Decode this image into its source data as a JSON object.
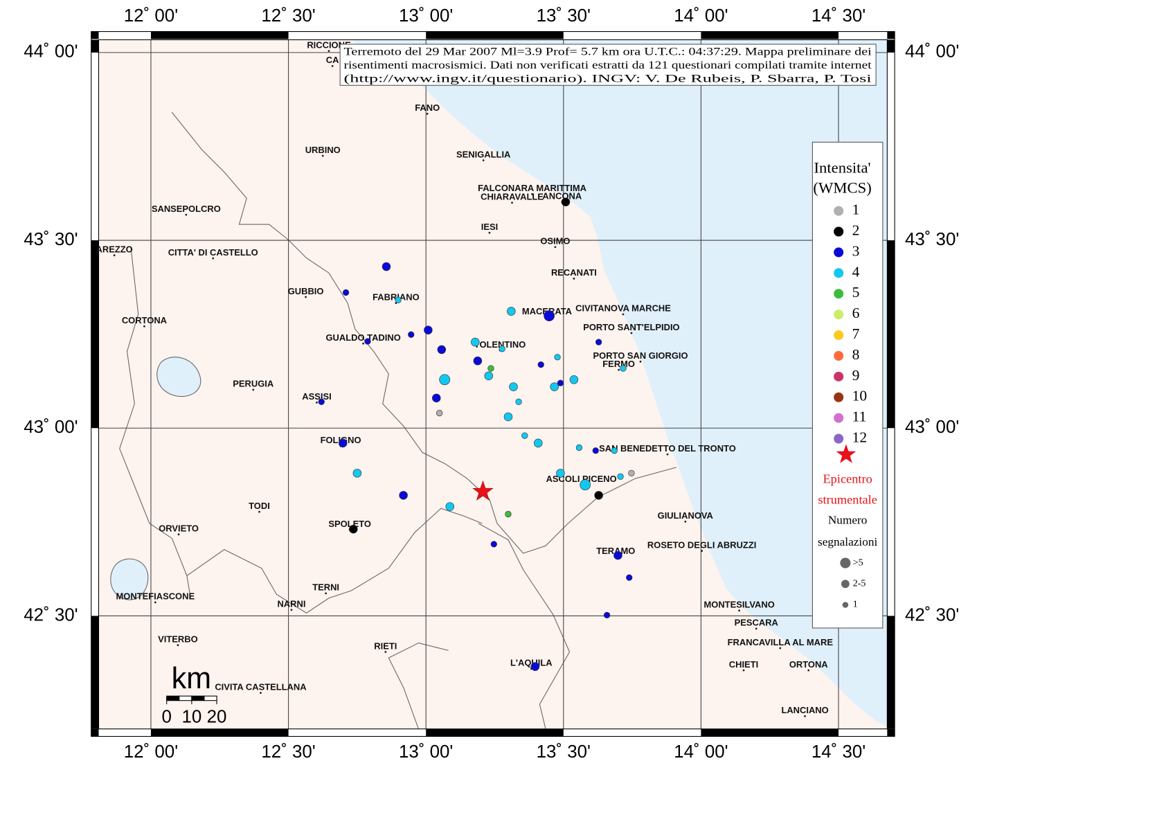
{
  "map": {
    "title_lines": [
      "Terremoto del 29 Mar 2007 Ml=3.9 Prof= 5.7 km ora U.T.C.: 04:37:29.  Mappa preliminare dei",
      "risentimenti macrosismici.    Dati non verificati estratti da 121 questionari compilati tramite internet",
      "(http://www.ingv.it/questionario).    INGV: V.  De Rubeis, P.  Sbarra, P.  Tosi"
    ],
    "lon_range": [
      11.81,
      14.677
    ],
    "lat_range": [
      42.199,
      44.034
    ],
    "lon_ticks": [
      {
        "value": 12,
        "label": "12˚ 00'"
      },
      {
        "value": 12.5,
        "label": "12˚ 30'"
      },
      {
        "value": 13,
        "label": "13˚ 00'"
      },
      {
        "value": 13.5,
        "label": "13˚ 30'"
      },
      {
        "value": 14,
        "label": "14˚ 00'"
      },
      {
        "value": 14.5,
        "label": "14˚ 30'"
      }
    ],
    "lat_ticks": [
      {
        "value": 42.5,
        "label": "42˚ 30'"
      },
      {
        "value": 43,
        "label": "43˚ 00'"
      },
      {
        "value": 43.5,
        "label": "43˚ 30'"
      },
      {
        "value": 44,
        "label": "44˚ 00'"
      }
    ],
    "grid": true,
    "land_color": "#fdf3ef",
    "sea_color": "#dff0fb",
    "cities": [
      {
        "name": "RICCIONE",
        "lon": 12.647,
        "lat": 44.018
      },
      {
        "name": "CA",
        "lon": 12.66,
        "lat": 43.978
      },
      {
        "name": "FANO",
        "lon": 13.005,
        "lat": 43.851
      },
      {
        "name": "URBINO",
        "lon": 12.625,
        "lat": 43.739
      },
      {
        "name": "SENIGALLIA",
        "lon": 13.209,
        "lat": 43.727
      },
      {
        "name": "FALCONARA MARITTIMA",
        "lon": 13.386,
        "lat": 43.637
      },
      {
        "name": "CHIARAVALLE",
        "lon": 13.313,
        "lat": 43.614
      },
      {
        "name": "ANCONA",
        "lon": 13.495,
        "lat": 43.616
      },
      {
        "name": "SANSEPOLCRO",
        "lon": 12.128,
        "lat": 43.582
      },
      {
        "name": "IESI",
        "lon": 13.231,
        "lat": 43.534
      },
      {
        "name": "OSIMO",
        "lon": 13.47,
        "lat": 43.496
      },
      {
        "name": "AREZZO",
        "lon": 11.867,
        "lat": 43.474
      },
      {
        "name": "CITTA' DI CASTELLO",
        "lon": 12.226,
        "lat": 43.466
      },
      {
        "name": "RECANATI",
        "lon": 13.538,
        "lat": 43.412
      },
      {
        "name": "GUBBIO",
        "lon": 12.563,
        "lat": 43.363
      },
      {
        "name": "FABRIANO",
        "lon": 12.891,
        "lat": 43.347
      },
      {
        "name": "MACERATA",
        "lon": 13.44,
        "lat": 43.309
      },
      {
        "name": "CIVITANOVA MARCHE",
        "lon": 13.717,
        "lat": 43.317
      },
      {
        "name": "CORTONA",
        "lon": 11.976,
        "lat": 43.285
      },
      {
        "name": "PORTO SANT'ELPIDIO",
        "lon": 13.747,
        "lat": 43.267
      },
      {
        "name": "GUALDO TADINO",
        "lon": 12.772,
        "lat": 43.239
      },
      {
        "name": "TOLENTINO",
        "lon": 13.269,
        "lat": 43.221
      },
      {
        "name": "PORTO SAN GIORGIO",
        "lon": 13.78,
        "lat": 43.191
      },
      {
        "name": "FERMO",
        "lon": 13.701,
        "lat": 43.169
      },
      {
        "name": "PERUGIA",
        "lon": 12.372,
        "lat": 43.116
      },
      {
        "name": "ASSISI",
        "lon": 12.603,
        "lat": 43.082
      },
      {
        "name": "FOLIGNO",
        "lon": 12.69,
        "lat": 42.966
      },
      {
        "name": "SAN BENEDETTO DEL TRONTO",
        "lon": 13.878,
        "lat": 42.944
      },
      {
        "name": "ASCOLI PICENO",
        "lon": 13.565,
        "lat": 42.863
      },
      {
        "name": "TODI",
        "lon": 12.394,
        "lat": 42.791
      },
      {
        "name": "GIULIANOVA",
        "lon": 13.943,
        "lat": 42.765
      },
      {
        "name": "SPOLETO",
        "lon": 12.723,
        "lat": 42.743
      },
      {
        "name": "ORVIETO",
        "lon": 12.101,
        "lat": 42.731
      },
      {
        "name": "ROSETO DEGLI ABRUZZI",
        "lon": 14.003,
        "lat": 42.687
      },
      {
        "name": "TERAMO",
        "lon": 13.69,
        "lat": 42.671
      },
      {
        "name": "TERNI",
        "lon": 12.636,
        "lat": 42.574
      },
      {
        "name": "MONTEFIASCONE",
        "lon": 12.016,
        "lat": 42.55
      },
      {
        "name": "NARNI",
        "lon": 12.511,
        "lat": 42.53
      },
      {
        "name": "MONTESILVANO",
        "lon": 14.139,
        "lat": 42.528
      },
      {
        "name": "PESCARA",
        "lon": 14.201,
        "lat": 42.48
      },
      {
        "name": "VITERBO",
        "lon": 12.098,
        "lat": 42.436
      },
      {
        "name": "FRANCAVILLA AL MARE",
        "lon": 14.288,
        "lat": 42.428
      },
      {
        "name": "RIETI",
        "lon": 12.853,
        "lat": 42.418
      },
      {
        "name": "L'AQUILA",
        "lon": 13.383,
        "lat": 42.373
      },
      {
        "name": "CHIETI",
        "lon": 14.155,
        "lat": 42.369
      },
      {
        "name": "ORTONA",
        "lon": 14.391,
        "lat": 42.369
      },
      {
        "name": "CIVITA CASTELLANA",
        "lon": 12.399,
        "lat": 42.309
      },
      {
        "name": "LANCIANO",
        "lon": 14.378,
        "lat": 42.247
      }
    ],
    "points": [
      {
        "lon": 13.508,
        "lat": 43.602,
        "intensity": 2,
        "size": 1
      },
      {
        "lon": 12.856,
        "lat": 43.43,
        "intensity": 3,
        "size": 1
      },
      {
        "lon": 12.709,
        "lat": 43.361,
        "intensity": 3,
        "size": 2
      },
      {
        "lon": 12.899,
        "lat": 43.341,
        "intensity": 4,
        "size": 2
      },
      {
        "lon": 13.31,
        "lat": 43.311,
        "intensity": 4,
        "size": 1
      },
      {
        "lon": 13.448,
        "lat": 43.299,
        "intensity": 3,
        "size": 0
      },
      {
        "lon": 13.008,
        "lat": 43.261,
        "intensity": 3,
        "size": 1
      },
      {
        "lon": 12.946,
        "lat": 43.249,
        "intensity": 3,
        "size": 2
      },
      {
        "lon": 12.788,
        "lat": 43.231,
        "intensity": 3,
        "size": 2
      },
      {
        "lon": 13.179,
        "lat": 43.229,
        "intensity": 4,
        "size": 1
      },
      {
        "lon": 13.277,
        "lat": 43.211,
        "intensity": 4,
        "size": 2
      },
      {
        "lon": 13.057,
        "lat": 43.209,
        "intensity": 3,
        "size": 1
      },
      {
        "lon": 13.628,
        "lat": 43.229,
        "intensity": 3,
        "size": 2
      },
      {
        "lon": 13.478,
        "lat": 43.189,
        "intensity": 4,
        "size": 2
      },
      {
        "lon": 13.188,
        "lat": 43.179,
        "intensity": 3,
        "size": 1
      },
      {
        "lon": 13.418,
        "lat": 43.169,
        "intensity": 3,
        "size": 2
      },
      {
        "lon": 13.236,
        "lat": 43.159,
        "intensity": 5,
        "size": 2
      },
      {
        "lon": 13.228,
        "lat": 43.139,
        "intensity": 4,
        "size": 1
      },
      {
        "lon": 13.068,
        "lat": 43.129,
        "intensity": 4,
        "size": 0
      },
      {
        "lon": 13.538,
        "lat": 43.129,
        "intensity": 4,
        "size": 1
      },
      {
        "lon": 13.717,
        "lat": 43.159,
        "intensity": 4,
        "size": 2
      },
      {
        "lon": 13.318,
        "lat": 43.11,
        "intensity": 4,
        "size": 1
      },
      {
        "lon": 13.467,
        "lat": 43.11,
        "intensity": 4,
        "size": 1
      },
      {
        "lon": 13.489,
        "lat": 43.12,
        "intensity": 3,
        "size": 2
      },
      {
        "lon": 13.038,
        "lat": 43.08,
        "intensity": 3,
        "size": 1
      },
      {
        "lon": 13.337,
        "lat": 43.07,
        "intensity": 4,
        "size": 2
      },
      {
        "lon": 12.62,
        "lat": 43.07,
        "intensity": 3,
        "size": 2
      },
      {
        "lon": 13.049,
        "lat": 43.04,
        "intensity": 1,
        "size": 2
      },
      {
        "lon": 13.299,
        "lat": 43.03,
        "intensity": 4,
        "size": 1
      },
      {
        "lon": 13.359,
        "lat": 42.98,
        "intensity": 4,
        "size": 2
      },
      {
        "lon": 13.408,
        "lat": 42.96,
        "intensity": 4,
        "size": 1
      },
      {
        "lon": 13.557,
        "lat": 42.948,
        "intensity": 4,
        "size": 2
      },
      {
        "lon": 13.617,
        "lat": 42.94,
        "intensity": 3,
        "size": 2
      },
      {
        "lon": 13.685,
        "lat": 42.94,
        "intensity": 4,
        "size": 2
      },
      {
        "lon": 12.698,
        "lat": 42.96,
        "intensity": 3,
        "size": 1
      },
      {
        "lon": 12.75,
        "lat": 42.88,
        "intensity": 4,
        "size": 1
      },
      {
        "lon": 13.489,
        "lat": 42.88,
        "intensity": 4,
        "size": 1
      },
      {
        "lon": 13.747,
        "lat": 42.88,
        "intensity": 1,
        "size": 2
      },
      {
        "lon": 13.707,
        "lat": 42.871,
        "intensity": 4,
        "size": 2
      },
      {
        "lon": 13.579,
        "lat": 42.849,
        "intensity": 4,
        "size": 0
      },
      {
        "lon": 12.918,
        "lat": 42.821,
        "intensity": 3,
        "size": 1
      },
      {
        "lon": 13.628,
        "lat": 42.821,
        "intensity": 2,
        "size": 1
      },
      {
        "lon": 13.087,
        "lat": 42.791,
        "intensity": 4,
        "size": 1
      },
      {
        "lon": 13.299,
        "lat": 42.771,
        "intensity": 5,
        "size": 2
      },
      {
        "lon": 12.736,
        "lat": 42.731,
        "intensity": 2,
        "size": 1
      },
      {
        "lon": 13.247,
        "lat": 42.691,
        "intensity": 3,
        "size": 2
      },
      {
        "lon": 13.698,
        "lat": 42.661,
        "intensity": 3,
        "size": 1
      },
      {
        "lon": 13.739,
        "lat": 42.602,
        "intensity": 3,
        "size": 2
      },
      {
        "lon": 13.658,
        "lat": 42.502,
        "intensity": 3,
        "size": 2
      },
      {
        "lon": 13.397,
        "lat": 42.365,
        "intensity": 3,
        "size": 1
      }
    ],
    "epicenter": {
      "lon": 13.207,
      "lat": 42.831,
      "color": "#e8121a"
    },
    "legend": {
      "title_lines": [
        "Intensita'",
        "(WMCS)"
      ],
      "classes": [
        {
          "value": 1,
          "color": "#b0b0b0"
        },
        {
          "value": 2,
          "color": "#000000"
        },
        {
          "value": 3,
          "color": "#0a0ad8"
        },
        {
          "value": 4,
          "color": "#12c8f0"
        },
        {
          "value": 5,
          "color": "#3cbc3c"
        },
        {
          "value": 6,
          "color": "#ccee66"
        },
        {
          "value": 7,
          "color": "#ffc81e"
        },
        {
          "value": 8,
          "color": "#ff6a3c"
        },
        {
          "value": 9,
          "color": "#cc3366"
        },
        {
          "value": 10,
          "color": "#993311"
        },
        {
          "value": 11,
          "color": "#d070d0"
        },
        {
          "value": 12,
          "color": "#8a66cc"
        }
      ],
      "epicenter_lines": [
        "Epicentro",
        "strumentale"
      ],
      "size_title_lines": [
        "Numero",
        "segnalazioni"
      ],
      "sizes": [
        ">5",
        "2-5",
        "1"
      ]
    },
    "scale_bar": {
      "unit": "km",
      "ticks": [
        0,
        10,
        20
      ]
    }
  }
}
